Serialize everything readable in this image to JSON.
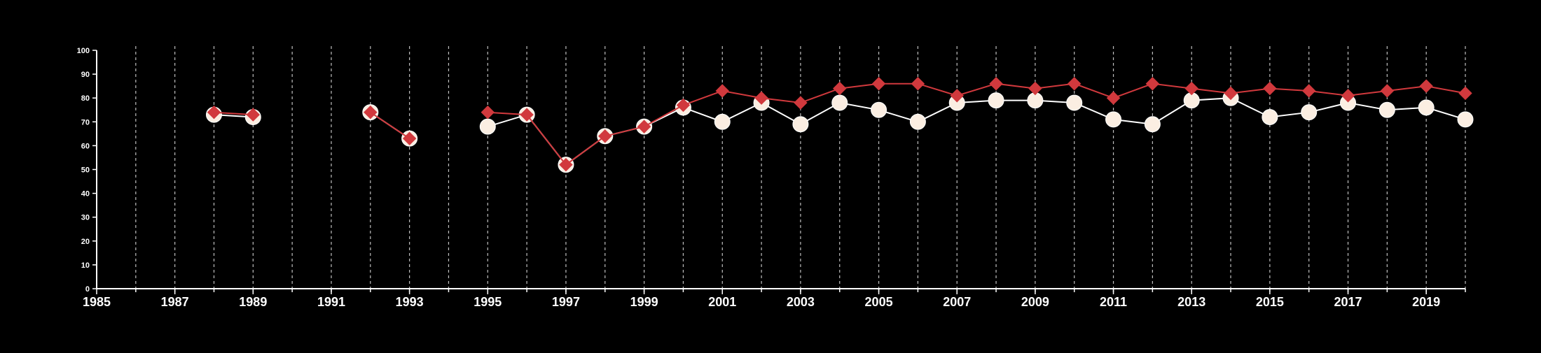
{
  "chart_data": {
    "type": "line",
    "title": "",
    "xlabel": "",
    "ylabel": "",
    "xlim": [
      1985,
      2020
    ],
    "ylim": [
      0,
      100
    ],
    "y_ticks": [
      0,
      10,
      20,
      30,
      40,
      50,
      60,
      70,
      80,
      90,
      100
    ],
    "x_tick_labels": [
      1985,
      1987,
      1989,
      1991,
      1993,
      1995,
      1997,
      1999,
      2001,
      2003,
      2005,
      2007,
      2009,
      2011,
      2013,
      2015,
      2017,
      2019
    ],
    "x_minor_ticks": [
      1986,
      1987,
      1988,
      1989,
      1990,
      1991,
      1992,
      1993,
      1994,
      1995,
      1996,
      1997,
      1998,
      1999,
      2000,
      2001,
      2002,
      2003,
      2004,
      2005,
      2006,
      2007,
      2008,
      2009,
      2010,
      2011,
      2012,
      2013,
      2014,
      2015,
      2016,
      2017,
      2018,
      2019,
      2020
    ],
    "grid": "vertical dashed at every year",
    "legend": "none",
    "background_color": "#000000",
    "axis_color": "#ffffff",
    "series": [
      {
        "marker": "circle",
        "color": "#ffffff",
        "marker_fill": "#fbeee2",
        "points": [
          {
            "x": 1988,
            "y": 73
          },
          {
            "x": 1989,
            "y": 72
          },
          null,
          {
            "x": 1992,
            "y": 74
          },
          {
            "x": 1993,
            "y": 63
          },
          null,
          {
            "x": 1995,
            "y": 68
          },
          {
            "x": 1996,
            "y": 73
          },
          {
            "x": 1997,
            "y": 52
          },
          {
            "x": 1998,
            "y": 64
          },
          {
            "x": 1999,
            "y": 68
          },
          {
            "x": 2000,
            "y": 76
          },
          {
            "x": 2001,
            "y": 70
          },
          {
            "x": 2002,
            "y": 78
          },
          {
            "x": 2003,
            "y": 69
          },
          {
            "x": 2004,
            "y": 78
          },
          {
            "x": 2005,
            "y": 75
          },
          {
            "x": 2006,
            "y": 70
          },
          {
            "x": 2007,
            "y": 78
          },
          {
            "x": 2008,
            "y": 79
          },
          {
            "x": 2009,
            "y": 79
          },
          {
            "x": 2010,
            "y": 78
          },
          {
            "x": 2011,
            "y": 71
          },
          {
            "x": 2012,
            "y": 69
          },
          {
            "x": 2013,
            "y": 79
          },
          {
            "x": 2014,
            "y": 80
          },
          {
            "x": 2015,
            "y": 72
          },
          {
            "x": 2016,
            "y": 74
          },
          {
            "x": 2017,
            "y": 78
          },
          {
            "x": 2018,
            "y": 75
          },
          {
            "x": 2019,
            "y": 76
          },
          {
            "x": 2020,
            "y": 71
          }
        ]
      },
      {
        "marker": "diamond",
        "color": "#d1393d",
        "marker_fill": "#d1393d",
        "points": [
          {
            "x": 1988,
            "y": 74
          },
          {
            "x": 1989,
            "y": 73
          },
          null,
          {
            "x": 1992,
            "y": 74
          },
          {
            "x": 1993,
            "y": 63
          },
          null,
          {
            "x": 1995,
            "y": 74
          },
          {
            "x": 1996,
            "y": 73
          },
          {
            "x": 1997,
            "y": 52
          },
          {
            "x": 1998,
            "y": 64
          },
          {
            "x": 1999,
            "y": 68
          },
          {
            "x": 2000,
            "y": 77
          },
          {
            "x": 2001,
            "y": 83
          },
          {
            "x": 2002,
            "y": 80
          },
          {
            "x": 2003,
            "y": 78
          },
          {
            "x": 2004,
            "y": 84
          },
          {
            "x": 2005,
            "y": 86
          },
          {
            "x": 2006,
            "y": 86
          },
          {
            "x": 2007,
            "y": 81
          },
          {
            "x": 2008,
            "y": 86
          },
          {
            "x": 2009,
            "y": 84
          },
          {
            "x": 2010,
            "y": 86
          },
          {
            "x": 2011,
            "y": 80
          },
          {
            "x": 2012,
            "y": 86
          },
          {
            "x": 2013,
            "y": 84
          },
          {
            "x": 2014,
            "y": 82
          },
          {
            "x": 2015,
            "y": 84
          },
          {
            "x": 2016,
            "y": 83
          },
          {
            "x": 2017,
            "y": 81
          },
          {
            "x": 2018,
            "y": 83
          },
          {
            "x": 2019,
            "y": 85
          },
          {
            "x": 2020,
            "y": 82
          }
        ]
      }
    ]
  }
}
